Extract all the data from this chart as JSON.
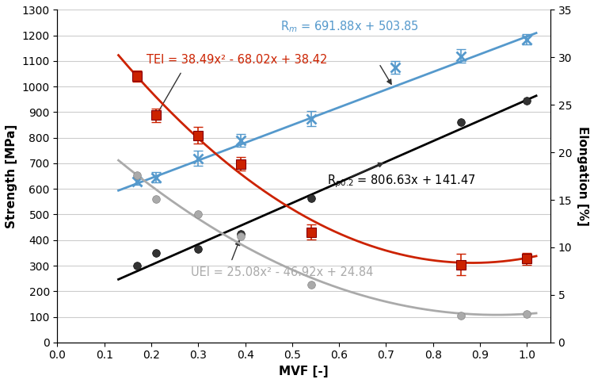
{
  "xlabel": "MVF [-]",
  "ylabel_left": "Strength [MPa]",
  "ylabel_right": "Elongation [%]",
  "xlim": [
    0,
    1.05
  ],
  "ylim_left": [
    0,
    1300
  ],
  "ylim_right": [
    0,
    35
  ],
  "x_ticks": [
    0,
    0.1,
    0.2,
    0.3,
    0.4,
    0.5,
    0.6,
    0.7,
    0.8,
    0.9,
    1.0
  ],
  "Rp02_data_x": [
    0.17,
    0.21,
    0.3,
    0.39,
    0.54,
    0.86,
    1.0
  ],
  "Rp02_data_y": [
    300,
    350,
    365,
    425,
    565,
    860,
    945
  ],
  "Rp02_fit": {
    "slope": 806.63,
    "intercept": 141.47
  },
  "Rp02_color": "#000000",
  "Rp02_label": "R$_{p0.2}$ = 806.63x + 141.47",
  "Rm_data_x": [
    0.17,
    0.21,
    0.3,
    0.39,
    0.54,
    0.72,
    0.86,
    1.0
  ],
  "Rm_data_y": [
    630,
    645,
    720,
    790,
    875,
    1075,
    1120,
    1185
  ],
  "Rm_data_yerr": [
    15,
    20,
    30,
    25,
    30,
    25,
    25,
    20
  ],
  "Rm_fit": {
    "slope": 691.88,
    "intercept": 503.85
  },
  "Rm_color": "#5599cc",
  "Rm_label": "R$_m$ = 691.88x + 503.85",
  "TEI_data_x": [
    0.17,
    0.21,
    0.3,
    0.39,
    0.54,
    0.86,
    1.0
  ],
  "TEI_data_y": [
    28.0,
    23.9,
    21.8,
    18.8,
    11.6,
    8.2,
    8.8
  ],
  "TEI_data_yerr": [
    0.6,
    0.7,
    0.9,
    0.7,
    0.8,
    1.1,
    0.6
  ],
  "TEI_fit": {
    "a": 38.49,
    "b": -68.02,
    "c": 38.42
  },
  "TEI_color": "#cc2200",
  "TEI_label": "TEI = 38.49x² - 68.02x + 38.42",
  "UEI_data_x": [
    0.17,
    0.21,
    0.3,
    0.39,
    0.54,
    0.86,
    1.0
  ],
  "UEI_data_y": [
    17.6,
    15.1,
    13.5,
    11.2,
    6.1,
    2.8,
    3.0
  ],
  "UEI_fit": {
    "a": 25.08,
    "b": -46.92,
    "c": 24.84
  },
  "UEI_color": "#aaaaaa",
  "UEI_label": "UEI = 25.08x² - 46.92x + 24.84",
  "bg_color": "#ffffff",
  "grid_color": "#cccccc",
  "font_size_label": 11,
  "font_size_tick": 10,
  "font_size_eq": 10.5
}
